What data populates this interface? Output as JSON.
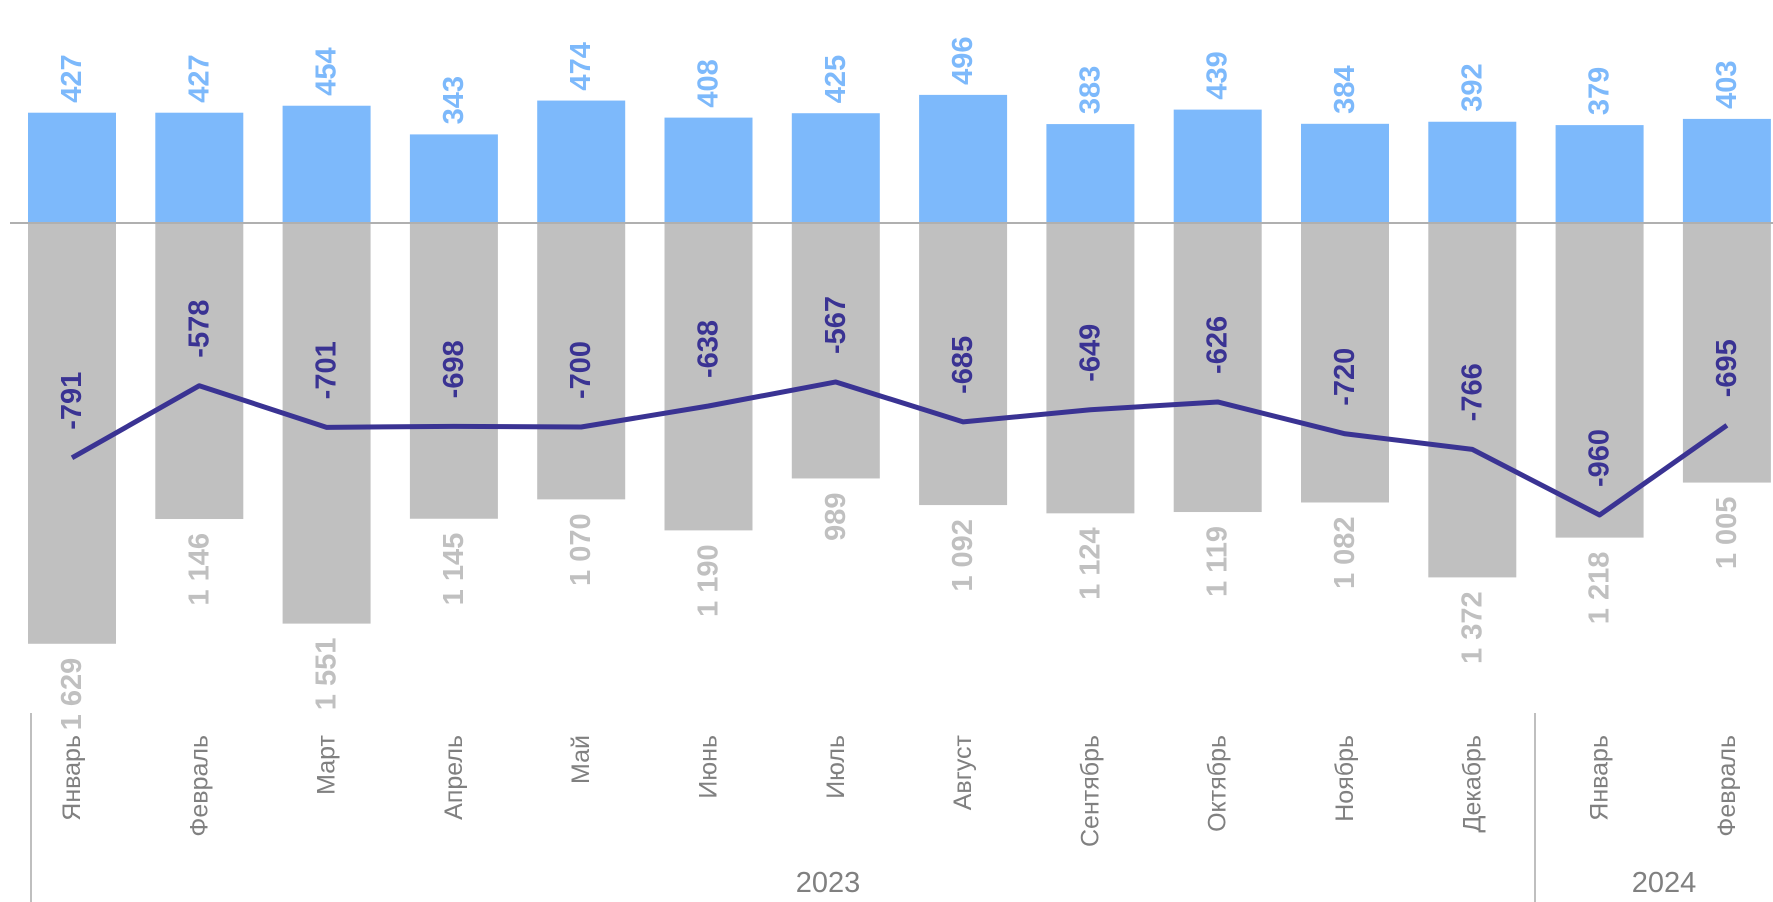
{
  "chart_data": {
    "type": "bar",
    "categories": [
      "Январь",
      "Февраль",
      "Март",
      "Апрель",
      "Май",
      "Июнь",
      "Июль",
      "Август",
      "Сентябрь",
      "Октябрь",
      "Ноябрь",
      "Декабрь",
      "Январь",
      "Февраль"
    ],
    "groups": [
      {
        "label": "2023",
        "count": 12
      },
      {
        "label": "2024",
        "count": 2
      }
    ],
    "series": [
      {
        "type": "bar",
        "color": "#7db9fb",
        "values": [
          427,
          427,
          454,
          343,
          474,
          408,
          425,
          496,
          383,
          439,
          384,
          392,
          379,
          403
        ],
        "labels": [
          "427",
          "427",
          "454",
          "343",
          "474",
          "408",
          "425",
          "496",
          "383",
          "439",
          "384",
          "392",
          "379",
          "403"
        ]
      },
      {
        "type": "bar",
        "color": "#c0c0c0",
        "values": [
          -1629,
          -1146,
          -1551,
          -1145,
          -1070,
          -1190,
          -989,
          -1092,
          -1124,
          -1119,
          -1082,
          -1372,
          -1218,
          -1005
        ],
        "labels": [
          "1 629",
          "1 146",
          "1 551",
          "1 145",
          "1 070",
          "1 190",
          "989",
          "1 092",
          "1 124",
          "1 119",
          "1 082",
          "1 372",
          "1 218",
          "1 005"
        ]
      },
      {
        "type": "line",
        "color": "#3a3393",
        "values": [
          -791,
          -578,
          -701,
          -698,
          -700,
          -638,
          -567,
          -685,
          -649,
          -626,
          -720,
          -766,
          -960,
          -695
        ],
        "labels": [
          "-791",
          "-578",
          "-701",
          "-698",
          "-700",
          "-638",
          "-567",
          "-685",
          "-649",
          "-626",
          "-720",
          "-766",
          "-960",
          "-695"
        ]
      }
    ],
    "label_colors": {
      "positive": "#7db9fb",
      "negative": "#c0c0c0",
      "net": "#3a3393",
      "axis_text": "#808080"
    },
    "grid": false,
    "legend": "none"
  }
}
